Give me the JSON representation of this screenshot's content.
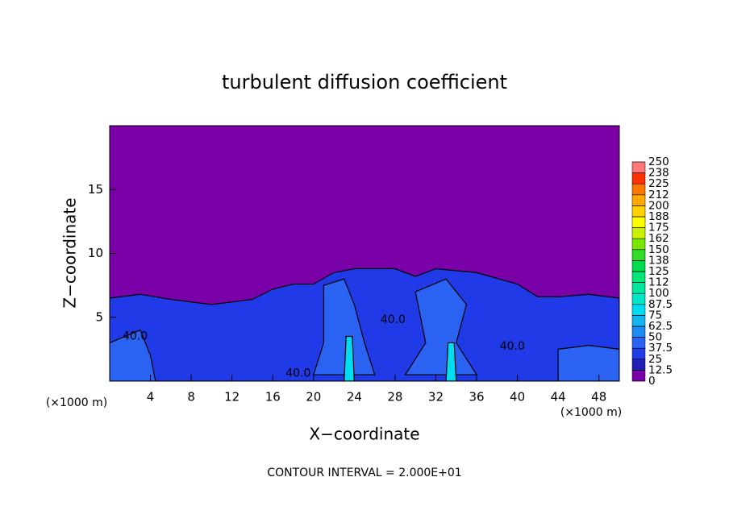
{
  "chart_data": {
    "type": "contour",
    "title": "turbulent diffusion coefficient",
    "x_label": "X−coordinate",
    "y_label": "Z−coordinate",
    "x_unit": "(×1000 m)",
    "x_unit_right": "(×1000 m)",
    "footer": "CONTOUR INTERVAL = 2.000E+01",
    "xlim": [
      0,
      50
    ],
    "xticks": [
      4,
      8,
      12,
      16,
      20,
      24,
      28,
      32,
      36,
      40,
      44,
      48
    ],
    "ylim": [
      0,
      20
    ],
    "yticks": [
      5,
      10,
      15
    ],
    "background_value": 0,
    "levels": [
      0,
      12.5,
      25,
      37.5,
      50,
      62.5,
      75,
      87.5,
      100,
      112,
      125,
      138,
      150,
      162,
      175,
      188,
      200,
      212,
      225,
      238,
      250
    ],
    "colors": [
      "#7a00a8",
      "#2020b8",
      "#1f3ae6",
      "#2a62f2",
      "#1e8cf2",
      "#14b4f0",
      "#00dcf0",
      "#00e6c8",
      "#00e6a0",
      "#00e678",
      "#00dc50",
      "#30dc28",
      "#78e600",
      "#c8f000",
      "#ffff00",
      "#ffd000",
      "#ffa800",
      "#ff7800",
      "#ff3000",
      "#ff7878"
    ],
    "regions": [
      {
        "value": 30,
        "points": [
          [
            0,
            6.5
          ],
          [
            3,
            6.8
          ],
          [
            6,
            6.4
          ],
          [
            10,
            6
          ],
          [
            14,
            6.4
          ],
          [
            16,
            7.2
          ],
          [
            18,
            7.6
          ],
          [
            20,
            7.6
          ],
          [
            22,
            8.5
          ],
          [
            24,
            8.8
          ],
          [
            28,
            8.8
          ],
          [
            30,
            8.2
          ],
          [
            32,
            8.8
          ],
          [
            36,
            8.5
          ],
          [
            40,
            7.6
          ],
          [
            42,
            6.6
          ],
          [
            44,
            6.6
          ],
          [
            47,
            6.8
          ],
          [
            50,
            6.5
          ],
          [
            50,
            0
          ],
          [
            0,
            0
          ]
        ]
      },
      {
        "value": 40,
        "points": [
          [
            21,
            7.5
          ],
          [
            23,
            8
          ],
          [
            24,
            6
          ],
          [
            25,
            3
          ],
          [
            26,
            0.5
          ],
          [
            20,
            0.5
          ],
          [
            21,
            3
          ]
        ]
      },
      {
        "value": 40,
        "points": [
          [
            30,
            7
          ],
          [
            33,
            8
          ],
          [
            35,
            6
          ],
          [
            34,
            3
          ],
          [
            36,
            0.5
          ],
          [
            29,
            0.5
          ],
          [
            31,
            3
          ]
        ]
      },
      {
        "value": 45,
        "points": [
          [
            0,
            3
          ],
          [
            3,
            4
          ],
          [
            4,
            2
          ],
          [
            4.5,
            0
          ],
          [
            0,
            0
          ]
        ]
      },
      {
        "value": 45,
        "points": [
          [
            44,
            2.5
          ],
          [
            47,
            2.8
          ],
          [
            50,
            2.5
          ],
          [
            50,
            0
          ],
          [
            44,
            0
          ]
        ]
      },
      {
        "value": 80,
        "points": [
          [
            23.2,
            3.5
          ],
          [
            23.8,
            3.5
          ],
          [
            24,
            0
          ],
          [
            23,
            0
          ]
        ]
      },
      {
        "value": 80,
        "points": [
          [
            33.2,
            3
          ],
          [
            33.8,
            3
          ],
          [
            34,
            0
          ],
          [
            33,
            0
          ]
        ]
      }
    ],
    "contour_labels": [
      {
        "text": "40.0",
        "x": 18.5,
        "z": 0.6
      },
      {
        "text": "40.0",
        "x": 27.8,
        "z": 4.8
      },
      {
        "text": "40.0",
        "x": 39.5,
        "z": 2.7
      },
      {
        "text": "40.0",
        "x": 2.5,
        "z": 3.5
      }
    ]
  }
}
